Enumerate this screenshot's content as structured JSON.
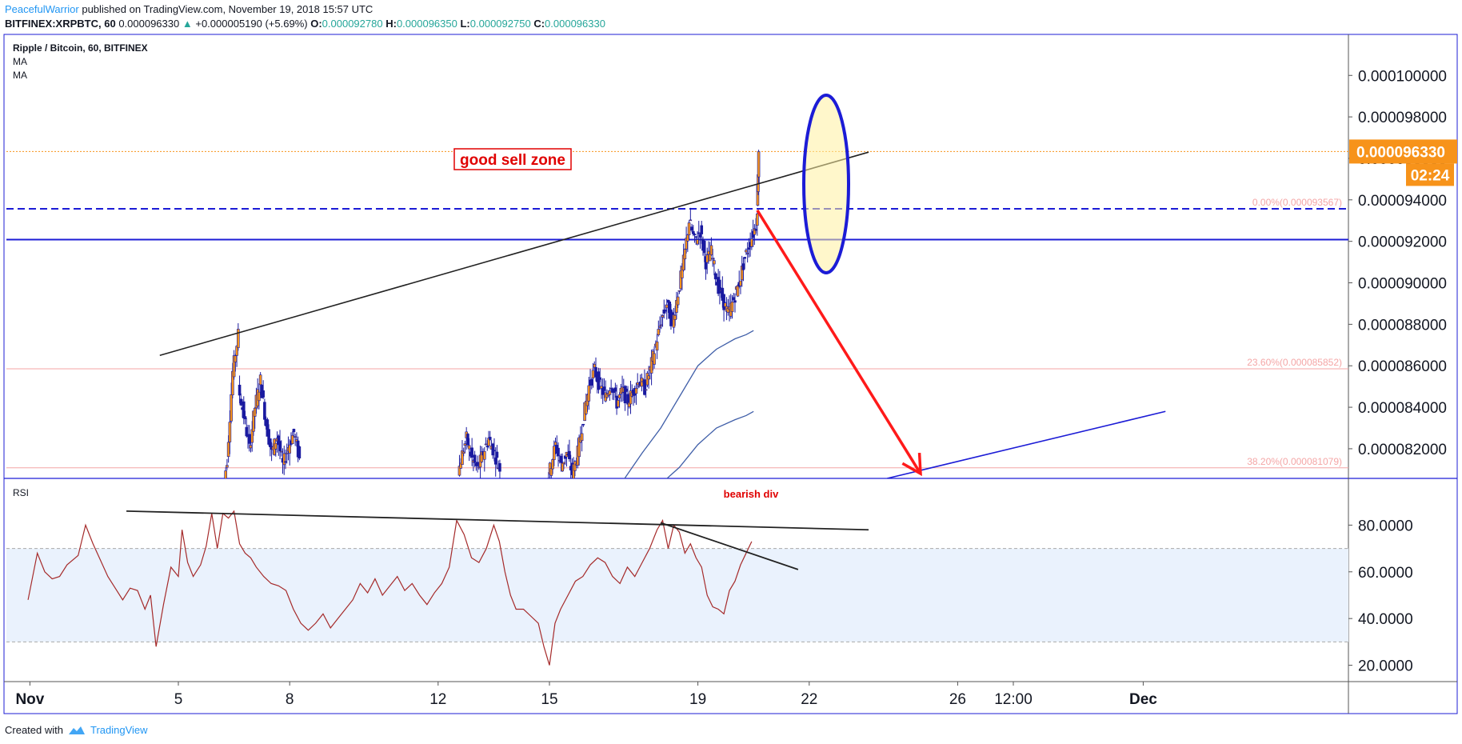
{
  "header": {
    "author": "PeacefulWarrior",
    "published": "published on TradingView.com, November 19, 2018 15:57 UTC",
    "symbol": "BITFINEX:XRPBTC, 60",
    "last": "0.000096330",
    "change": "+0.000005190 (+5.69%)",
    "o_label": "O:",
    "o": "0.000092780",
    "h_label": "H:",
    "h": "0.000096350",
    "l_label": "L:",
    "l": "0.000092750",
    "c_label": "C:",
    "c": "0.000096330"
  },
  "legend": {
    "title": "Ripple / Bitcoin, 60, BITFINEX",
    "ma1": "MA",
    "ma2": "MA"
  },
  "footer": {
    "created": "Created with",
    "brand": "TradingView"
  },
  "colors": {
    "border": "#1c1cd6",
    "candle": "#1a1aa0",
    "candle_up": "#f7931a",
    "price_tag": "#f7931a",
    "trend": "#222222",
    "level": "#1c1cd6",
    "fib": "#f4a6a6",
    "rsi_line": "#a52a2a",
    "rsi_band": "#eaf2fd",
    "arrow": "#ff1a1a",
    "note": "#e00000"
  },
  "chart_data": {
    "type": "candlestick",
    "price_axis": {
      "ticks": [
        0.0001,
        9.8e-05,
        9.6e-05,
        9.4e-05,
        9.2e-05,
        9e-05,
        8.8e-05,
        8.6e-05,
        8.4e-05,
        8.2e-05
      ],
      "tick_labels": [
        "0.000100000",
        "0.000098000",
        "0.000096000",
        "0.000094000",
        "0.000092000",
        "0.000090000",
        "0.000088000",
        "0.000086000",
        "0.000084000",
        "0.000082000"
      ],
      "ylim": [
        8.057e-05,
        0.0001019
      ]
    },
    "x_axis": {
      "tick_labels": [
        "Nov",
        "5",
        "8",
        "12",
        "15",
        "19",
        "22",
        "26",
        "12:00",
        "Dec"
      ],
      "tick_days": [
        1,
        5,
        8,
        12,
        15,
        19,
        22,
        26,
        27.5,
        31
      ],
      "bold": [
        "Nov",
        "Dec"
      ]
    },
    "current_price": {
      "value": 9.633e-05,
      "label": "0.000096330",
      "countdown": "02:24"
    },
    "fib_levels": [
      {
        "label": "0.00%(0.000093567)",
        "value": 9.3567e-05
      },
      {
        "label": "23.60%(0.000085852)",
        "value": 8.5852e-05
      },
      {
        "label": "38.20%(0.000081079)",
        "value": 8.1079e-05
      }
    ],
    "horizontal_levels": [
      9.2085e-05
    ],
    "annotations": [
      {
        "text": "good sell zone"
      },
      {
        "text": "bearish div"
      }
    ],
    "candle_path": [
      [
        6.2,
        7.95e-05,
        8.15e-05
      ],
      [
        6.35,
        8.15e-05,
        8.57e-05
      ],
      [
        6.5,
        8.57e-05,
        8.75e-05
      ],
      [
        6.65,
        8.5e-05,
        8.36e-05
      ],
      [
        6.8,
        8.36e-05,
        8.2e-05
      ],
      [
        6.95,
        8.2e-05,
        8.4e-05
      ],
      [
        7.1,
        8.4e-05,
        8.53e-05
      ],
      [
        7.25,
        8.53e-05,
        8.32e-05
      ],
      [
        7.4,
        8.32e-05,
        8.18e-05
      ],
      [
        7.55,
        8.18e-05,
        8.26e-05
      ],
      [
        7.7,
        8.26e-05,
        8.12e-05
      ],
      [
        7.85,
        8.12e-05,
        8.21e-05
      ],
      [
        8.0,
        8.21e-05,
        8.28e-05
      ],
      [
        8.15,
        8.28e-05,
        8.15e-05
      ],
      [
        8.3,
        8.15e-05,
        8.05e-05
      ],
      [
        12.5,
        8e-05,
        8.15e-05
      ],
      [
        12.65,
        8.15e-05,
        8.25e-05
      ],
      [
        12.8,
        8.25e-05,
        8.15e-05
      ],
      [
        12.95,
        8.15e-05,
        8.1e-05
      ],
      [
        13.1,
        8.1e-05,
        8.18e-05
      ],
      [
        13.25,
        8.18e-05,
        8.25e-05
      ],
      [
        13.4,
        8.25e-05,
        8.18e-05
      ],
      [
        13.55,
        8.18e-05,
        8.1e-05
      ],
      [
        13.7,
        8.1e-05,
        8.05e-05
      ],
      [
        14.9,
        8e-05,
        8.1e-05
      ],
      [
        15.05,
        8.1e-05,
        8.22e-05
      ],
      [
        15.2,
        8.22e-05,
        8.12e-05
      ],
      [
        15.35,
        8.12e-05,
        8.18e-05
      ],
      [
        15.5,
        8.18e-05,
        8.08e-05
      ],
      [
        15.65,
        8.08e-05,
        8.18e-05
      ],
      [
        15.8,
        8.18e-05,
        8.35e-05
      ],
      [
        15.95,
        8.35e-05,
        8.5e-05
      ],
      [
        16.1,
        8.5e-05,
        8.58e-05
      ],
      [
        16.25,
        8.58e-05,
        8.5e-05
      ],
      [
        16.4,
        8.5e-05,
        8.45e-05
      ],
      [
        16.55,
        8.45e-05,
        8.52e-05
      ],
      [
        16.7,
        8.52e-05,
        8.42e-05
      ],
      [
        16.85,
        8.42e-05,
        8.48e-05
      ],
      [
        17.0,
        8.48e-05,
        8.43e-05
      ],
      [
        17.15,
        8.43e-05,
        8.48e-05
      ],
      [
        17.3,
        8.48e-05,
        8.53e-05
      ],
      [
        17.45,
        8.53e-05,
        8.49e-05
      ],
      [
        17.6,
        8.49e-05,
        8.58e-05
      ],
      [
        17.75,
        8.58e-05,
        8.7e-05
      ],
      [
        17.9,
        8.7e-05,
        8.82e-05
      ],
      [
        18.05,
        8.82e-05,
        8.9e-05
      ],
      [
        18.2,
        8.9e-05,
        8.8e-05
      ],
      [
        18.35,
        8.8e-05,
        8.95e-05
      ],
      [
        18.5,
        8.95e-05,
        9.1e-05
      ],
      [
        18.65,
        9.1e-05,
        9.3e-05
      ],
      [
        18.8,
        9.3e-05,
        9.2e-05
      ],
      [
        18.95,
        9.2e-05,
        9.25e-05
      ],
      [
        19.1,
        9.25e-05,
        9.1e-05
      ],
      [
        19.25,
        9.1e-05,
        9.15e-05
      ],
      [
        19.4,
        9.15e-05,
        9e-05
      ],
      [
        19.55,
        9e-05,
        8.92e-05
      ],
      [
        19.7,
        8.92e-05,
        8.85e-05
      ],
      [
        19.85,
        8.85e-05,
        8.92e-05
      ],
      [
        20.0,
        8.92e-05,
        9e-05
      ],
      [
        20.15,
        9e-05,
        9.12e-05
      ],
      [
        20.3,
        9.12e-05,
        9.2e-05
      ],
      [
        20.45,
        9.2e-05,
        9.278e-05
      ],
      [
        20.6,
        9.278e-05,
        9.633e-05
      ]
    ],
    "ma_fast": [
      [
        17.0,
        8.05e-05
      ],
      [
        17.5,
        8.18e-05
      ],
      [
        18.0,
        8.3e-05
      ],
      [
        18.5,
        8.45e-05
      ],
      [
        19.0,
        8.6e-05
      ],
      [
        19.5,
        8.68e-05
      ],
      [
        20.0,
        8.73e-05
      ],
      [
        20.3,
        8.75e-05
      ],
      [
        20.5,
        8.77e-05
      ]
    ],
    "ma_slow": [
      [
        18.0,
        8.03e-05
      ],
      [
        18.5,
        8.11e-05
      ],
      [
        19.0,
        8.22e-05
      ],
      [
        19.5,
        8.3e-05
      ],
      [
        20.0,
        8.34e-05
      ],
      [
        20.3,
        8.36e-05
      ],
      [
        20.5,
        8.38e-05
      ]
    ],
    "drawings": {
      "upper_trendline": [
        [
          4.5,
          8.65e-05
        ],
        [
          23.6,
          9.63e-05
        ]
      ],
      "lower_trendline": [
        [
          24.1,
          8.057e-05
        ],
        [
          31.6,
          8.38e-05
        ]
      ],
      "forecast_arrow": [
        [
          20.6,
          9.35e-05
        ],
        [
          25.0,
          8.08e-05
        ]
      ]
    },
    "rsi": {
      "label": "RSI",
      "tick_labels": [
        "80.0000",
        "60.0000",
        "40.0000",
        "20.0000"
      ],
      "ticks": [
        80,
        60,
        40,
        20
      ],
      "ylim": [
        13,
        100
      ],
      "band": [
        30,
        70
      ],
      "points": [
        [
          0.95,
          48
        ],
        [
          1.2,
          68
        ],
        [
          1.4,
          60
        ],
        [
          1.6,
          57
        ],
        [
          1.8,
          58
        ],
        [
          2.0,
          63
        ],
        [
          2.3,
          67
        ],
        [
          2.5,
          80
        ],
        [
          2.7,
          72
        ],
        [
          2.9,
          65
        ],
        [
          3.1,
          58
        ],
        [
          3.3,
          53
        ],
        [
          3.5,
          48
        ],
        [
          3.7,
          53
        ],
        [
          3.9,
          52
        ],
        [
          4.1,
          44
        ],
        [
          4.25,
          50
        ],
        [
          4.4,
          28
        ],
        [
          4.6,
          46
        ],
        [
          4.8,
          62
        ],
        [
          5.0,
          58
        ],
        [
          5.1,
          78
        ],
        [
          5.25,
          64
        ],
        [
          5.4,
          58
        ],
        [
          5.6,
          63
        ],
        [
          5.75,
          71
        ],
        [
          5.9,
          85
        ],
        [
          6.05,
          70
        ],
        [
          6.2,
          85
        ],
        [
          6.35,
          83
        ],
        [
          6.5,
          86
        ],
        [
          6.65,
          72
        ],
        [
          6.8,
          68
        ],
        [
          6.95,
          66
        ],
        [
          7.1,
          62
        ],
        [
          7.3,
          58
        ],
        [
          7.5,
          55
        ],
        [
          7.7,
          54
        ],
        [
          7.9,
          52
        ],
        [
          8.1,
          44
        ],
        [
          8.3,
          38
        ],
        [
          8.5,
          35
        ],
        [
          8.7,
          38
        ],
        [
          8.9,
          42
        ],
        [
          9.1,
          36
        ],
        [
          9.3,
          40
        ],
        [
          9.5,
          44
        ],
        [
          9.7,
          48
        ],
        [
          9.9,
          55
        ],
        [
          10.1,
          51
        ],
        [
          10.3,
          57
        ],
        [
          10.5,
          50
        ],
        [
          10.7,
          54
        ],
        [
          10.9,
          58
        ],
        [
          11.1,
          52
        ],
        [
          11.3,
          55
        ],
        [
          11.5,
          50
        ],
        [
          11.7,
          46
        ],
        [
          11.9,
          51
        ],
        [
          12.1,
          55
        ],
        [
          12.3,
          62
        ],
        [
          12.5,
          82
        ],
        [
          12.7,
          76
        ],
        [
          12.9,
          66
        ],
        [
          13.1,
          64
        ],
        [
          13.3,
          70
        ],
        [
          13.5,
          80
        ],
        [
          13.65,
          73
        ],
        [
          13.8,
          60
        ],
        [
          13.95,
          50
        ],
        [
          14.1,
          44
        ],
        [
          14.3,
          44
        ],
        [
          14.5,
          41
        ],
        [
          14.7,
          38
        ],
        [
          14.85,
          28
        ],
        [
          15.0,
          20
        ],
        [
          15.15,
          38
        ],
        [
          15.3,
          44
        ],
        [
          15.5,
          50
        ],
        [
          15.7,
          56
        ],
        [
          15.9,
          58
        ],
        [
          16.1,
          63
        ],
        [
          16.3,
          66
        ],
        [
          16.5,
          64
        ],
        [
          16.7,
          58
        ],
        [
          16.9,
          55
        ],
        [
          17.1,
          62
        ],
        [
          17.3,
          58
        ],
        [
          17.5,
          64
        ],
        [
          17.7,
          70
        ],
        [
          17.9,
          78
        ],
        [
          18.05,
          82
        ],
        [
          18.2,
          70
        ],
        [
          18.35,
          80
        ],
        [
          18.5,
          77
        ],
        [
          18.65,
          68
        ],
        [
          18.8,
          72
        ],
        [
          18.95,
          66
        ],
        [
          19.1,
          62
        ],
        [
          19.25,
          50
        ],
        [
          19.4,
          45
        ],
        [
          19.55,
          44
        ],
        [
          19.7,
          42
        ],
        [
          19.85,
          52
        ],
        [
          20.0,
          56
        ],
        [
          20.15,
          63
        ],
        [
          20.3,
          68
        ],
        [
          20.45,
          73
        ]
      ],
      "trendline": [
        [
          3.6,
          86
        ],
        [
          23.6,
          78
        ]
      ],
      "div_line": [
        [
          18.0,
          81
        ],
        [
          21.7,
          61
        ]
      ]
    }
  }
}
